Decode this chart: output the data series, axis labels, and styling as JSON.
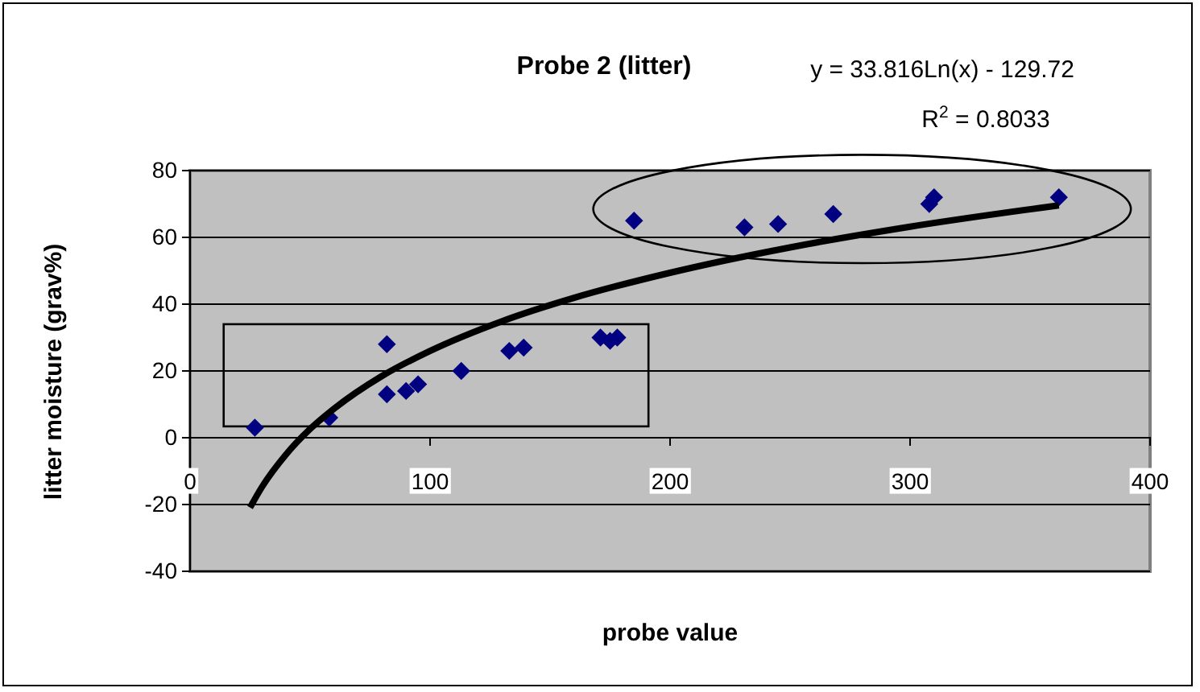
{
  "chart_data": {
    "type": "scatter",
    "title": "Probe 2 (litter)",
    "xlabel": "probe value",
    "ylabel": "litter moisture (grav%)",
    "annotations": [
      "y = 33.816Ln(x) - 129.72",
      "R$^{2}$ = 0.8033"
    ],
    "xlim": [
      0,
      400
    ],
    "xticks": [
      0,
      100,
      200,
      300,
      400
    ],
    "ylim": [
      -40,
      80
    ],
    "yticks": [
      -40,
      -20,
      0,
      20,
      40,
      60,
      80
    ],
    "grid": "y",
    "marker": "diamond",
    "series": [
      {
        "color": "#000080",
        "x": [
          27,
          58,
          82,
          82,
          90,
          95,
          113,
          133,
          139,
          171,
          175,
          178,
          185,
          231,
          245,
          268,
          308,
          310,
          362
        ],
        "values": [
          3,
          6,
          28,
          13,
          14,
          16,
          20,
          26,
          27,
          30,
          29,
          30,
          65,
          63,
          64,
          67,
          70,
          72,
          72
        ]
      },
      {
        "type": "line",
        "color": "#000000",
        "marker": "none",
        "line_style": "solid",
        "x": [
          25,
          30,
          40,
          50,
          60,
          80,
          100,
          130,
          160,
          200,
          250,
          300,
          362
        ],
        "values": [
          -20.9,
          -14.7,
          -5.0,
          2.6,
          8.7,
          18.5,
          26.0,
          34.9,
          41.9,
          49.4,
          57.0,
          63.2,
          69.6
        ]
      }
    ]
  }
}
